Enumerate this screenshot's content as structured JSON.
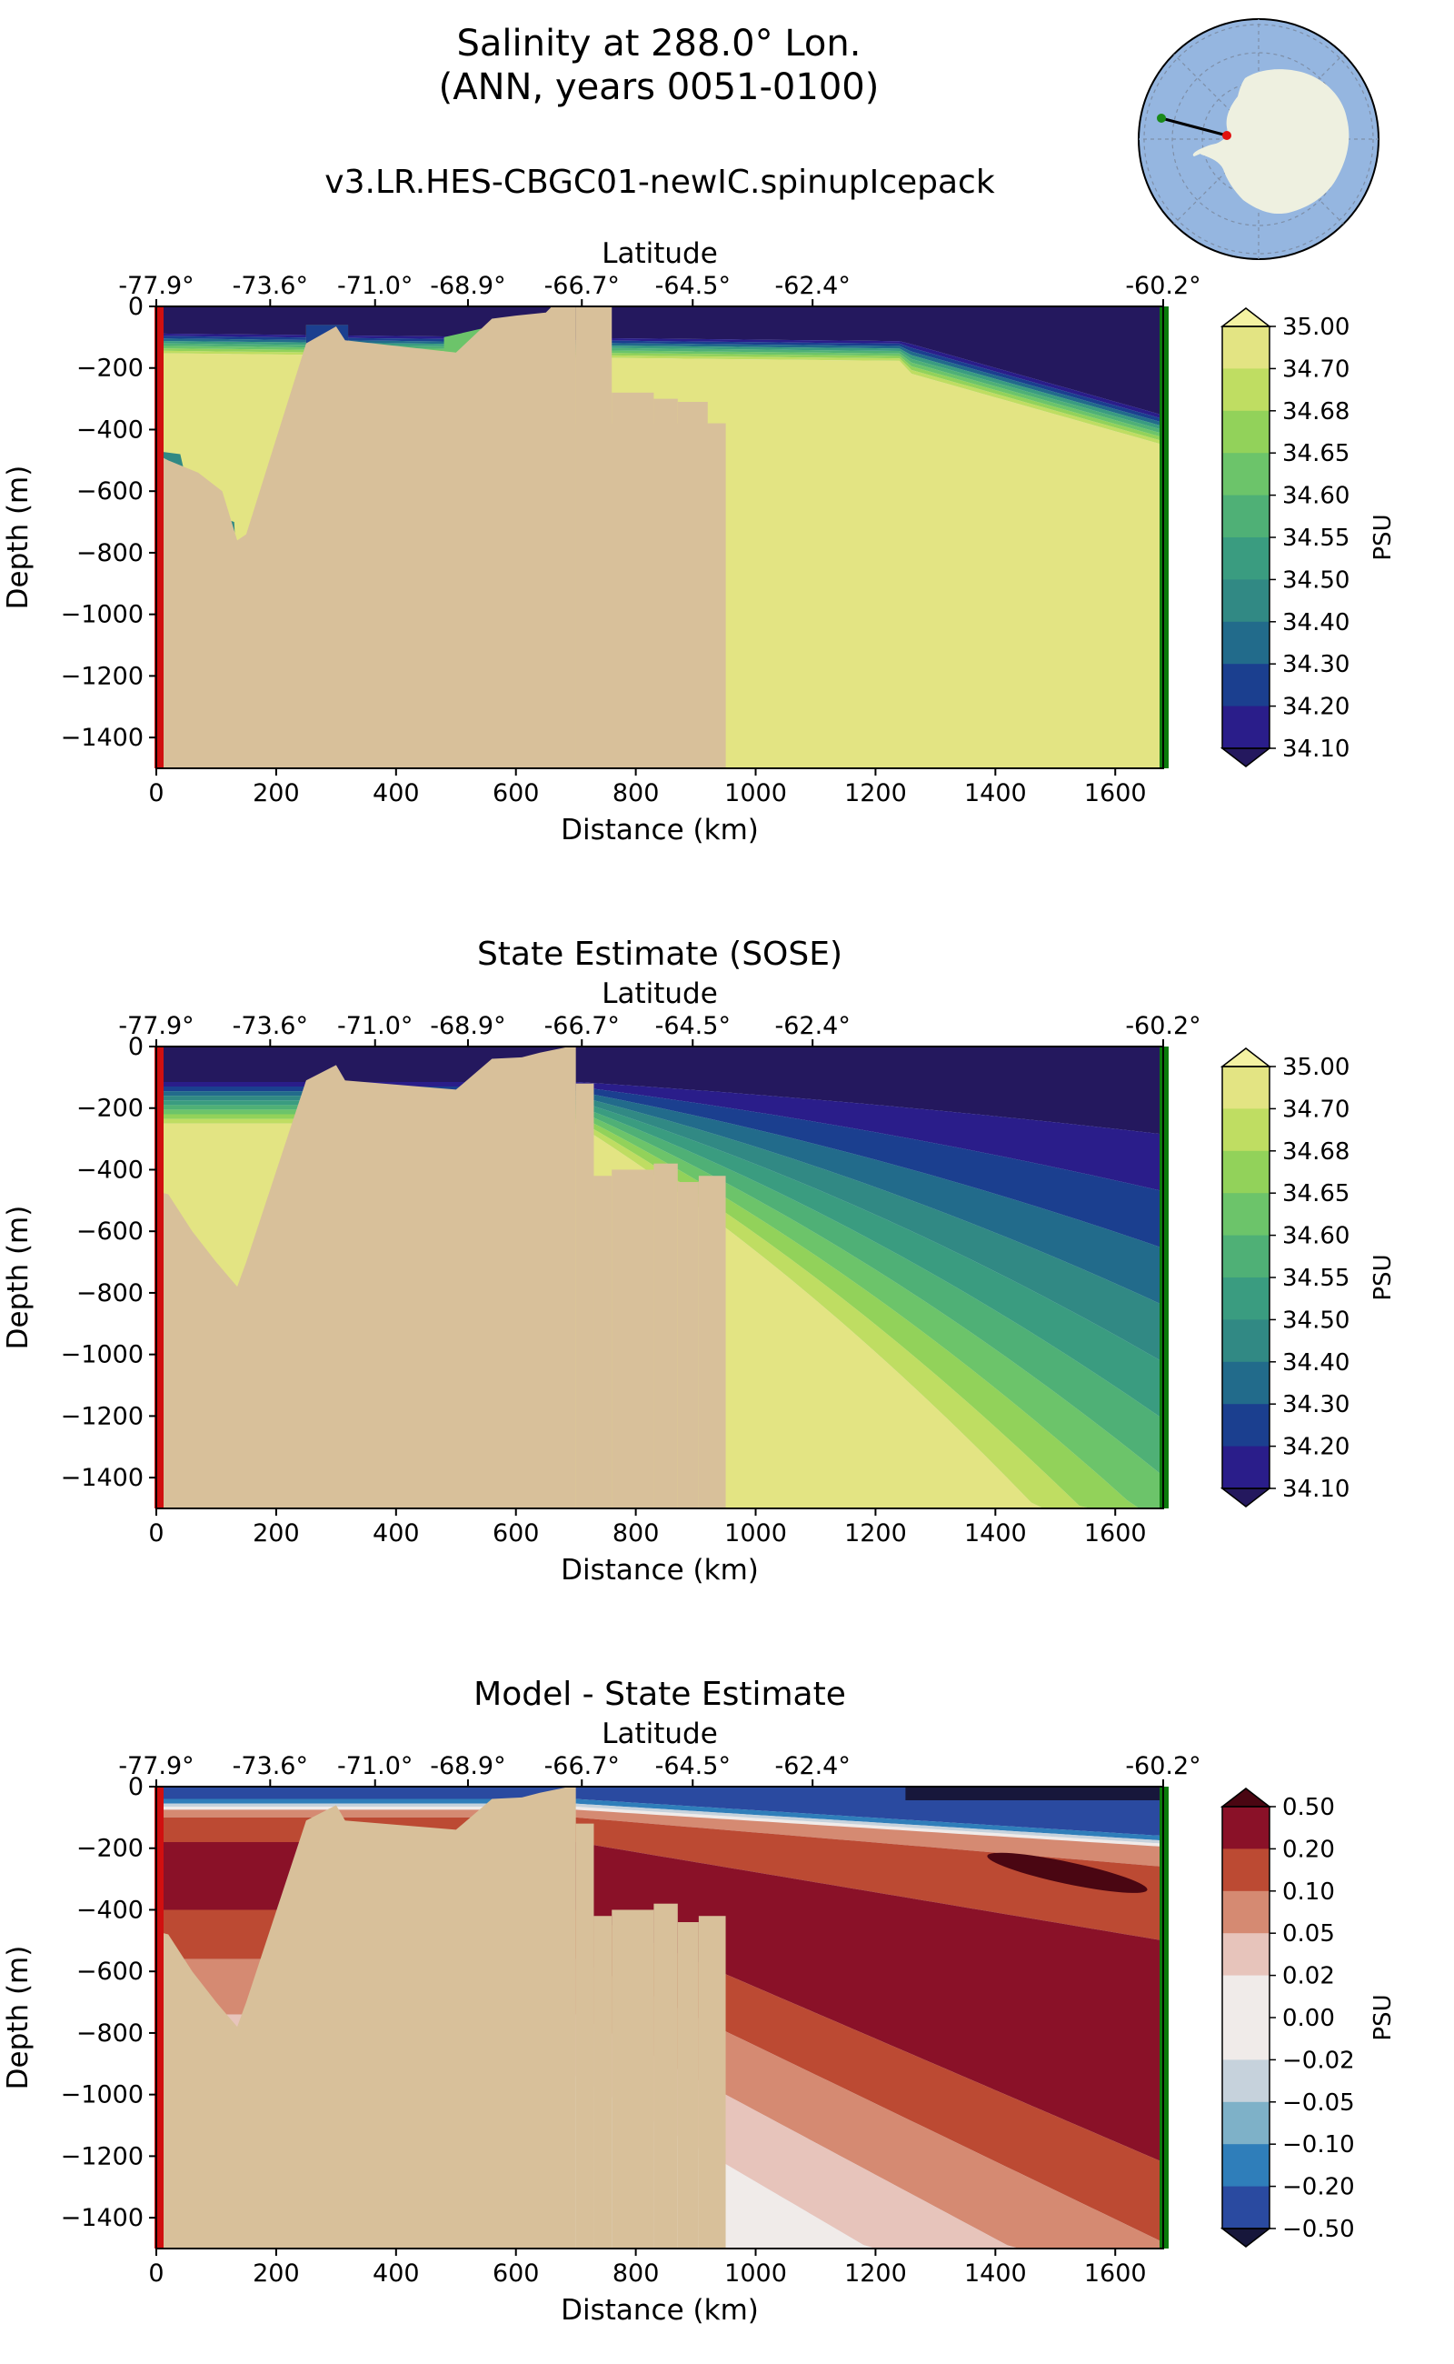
{
  "figure": {
    "title_line1": "Salinity at 288.0° Lon.",
    "title_line2": "(ANN, years 0051-0100)"
  },
  "inset_map": {
    "description_icon": "antarctica-map-icon",
    "start_marker_color": "#1a8a1a",
    "end_marker_color": "#e01010"
  },
  "colors": {
    "land": "#d8c09a",
    "no_data": "#dfe9f5",
    "start_line": "#d01010",
    "end_line": "#0b7a0b"
  },
  "chart_data": [
    {
      "type": "heatmap",
      "title": "v3.LR.HES-CBGC01-newIC.spinupIcepack",
      "xlabel": "Distance (km)",
      "ylabel": "Depth (m)",
      "top_xlabel": "Latitude",
      "xlim": [
        0,
        1680
      ],
      "ylim": [
        -1500,
        0
      ],
      "x_ticks": [
        "0",
        "200",
        "400",
        "600",
        "800",
        "1000",
        "1200",
        "1400",
        "1600"
      ],
      "y_ticks": [
        "0",
        "−200",
        "−400",
        "−600",
        "−800",
        "−1000",
        "−1200",
        "−1400"
      ],
      "lat_ticks": [
        "-77.9°",
        "-73.6°",
        "-71.0°",
        "-68.9°",
        "-66.7°",
        "-64.5°",
        "-62.4°",
        "-60.2°"
      ],
      "colorbar": {
        "label": "PSU",
        "ticks": [
          "35.00",
          "34.70",
          "34.68",
          "34.65",
          "34.60",
          "34.55",
          "34.50",
          "34.40",
          "34.30",
          "34.20",
          "34.10"
        ],
        "colors": [
          "#e3e483",
          "#bfdd62",
          "#92d25a",
          "#6cc46a",
          "#4fb076",
          "#3a9c80",
          "#318984",
          "#226b8b",
          "#1b3f8f",
          "#2a1d8a"
        ],
        "over_color": "#f4f2a2",
        "under_color": "#24185e"
      },
      "values_summary": "Surface layer ~34.10 PSU (dark blue) over top ~100-300 m deepening offshore; deep water 34.70-35.00 PSU; shelf cavities ~34.40-34.50 PSU"
    },
    {
      "type": "heatmap",
      "title": "State Estimate (SOSE)",
      "xlabel": "Distance (km)",
      "ylabel": "Depth (m)",
      "top_xlabel": "Latitude",
      "xlim": [
        0,
        1680
      ],
      "ylim": [
        -1500,
        0
      ],
      "x_ticks": [
        "0",
        "200",
        "400",
        "600",
        "800",
        "1000",
        "1200",
        "1400",
        "1600"
      ],
      "y_ticks": [
        "0",
        "−200",
        "−400",
        "−600",
        "−800",
        "−1000",
        "−1200",
        "−1400"
      ],
      "lat_ticks": [
        "-77.9°",
        "-73.6°",
        "-71.0°",
        "-68.9°",
        "-66.7°",
        "-64.5°",
        "-62.4°",
        "-60.2°"
      ],
      "colorbar": {
        "label": "PSU",
        "ticks": [
          "35.00",
          "34.70",
          "34.68",
          "34.65",
          "34.60",
          "34.55",
          "34.50",
          "34.40",
          "34.30",
          "34.20",
          "34.10"
        ],
        "colors": [
          "#e3e483",
          "#bfdd62",
          "#92d25a",
          "#6cc46a",
          "#4fb076",
          "#3a9c80",
          "#318984",
          "#226b8b",
          "#1b3f8f",
          "#2a1d8a"
        ],
        "over_color": "#f4f2a2",
        "under_color": "#24185e"
      }
    },
    {
      "type": "heatmap",
      "title": "Model - State Estimate",
      "xlabel": "Distance (km)",
      "ylabel": "Depth (m)",
      "top_xlabel": "Latitude",
      "xlim": [
        0,
        1680
      ],
      "ylim": [
        -1500,
        0
      ],
      "x_ticks": [
        "0",
        "200",
        "400",
        "600",
        "800",
        "1000",
        "1200",
        "1400",
        "1600"
      ],
      "y_ticks": [
        "0",
        "−200",
        "−400",
        "−600",
        "−800",
        "−1000",
        "−1200",
        "−1400"
      ],
      "lat_ticks": [
        "-77.9°",
        "-73.6°",
        "-71.0°",
        "-68.9°",
        "-66.7°",
        "-64.5°",
        "-62.4°",
        "-60.2°"
      ],
      "colorbar": {
        "label": "PSU",
        "ticks": [
          "0.50",
          "0.20",
          "0.10",
          "0.05",
          "0.02",
          "0.00",
          "−0.02",
          "−0.05",
          "−0.10",
          "−0.20",
          "−0.50"
        ],
        "colors": [
          "#8a1128",
          "#bc4a33",
          "#d58a72",
          "#e7c4bb",
          "#f0ebe9",
          "#f0ebe9",
          "#c6d2dc",
          "#7eb1c8",
          "#2f7eba",
          "#2a4aa0"
        ],
        "over_color": "#4a0612",
        "under_color": "#17173b"
      }
    }
  ]
}
